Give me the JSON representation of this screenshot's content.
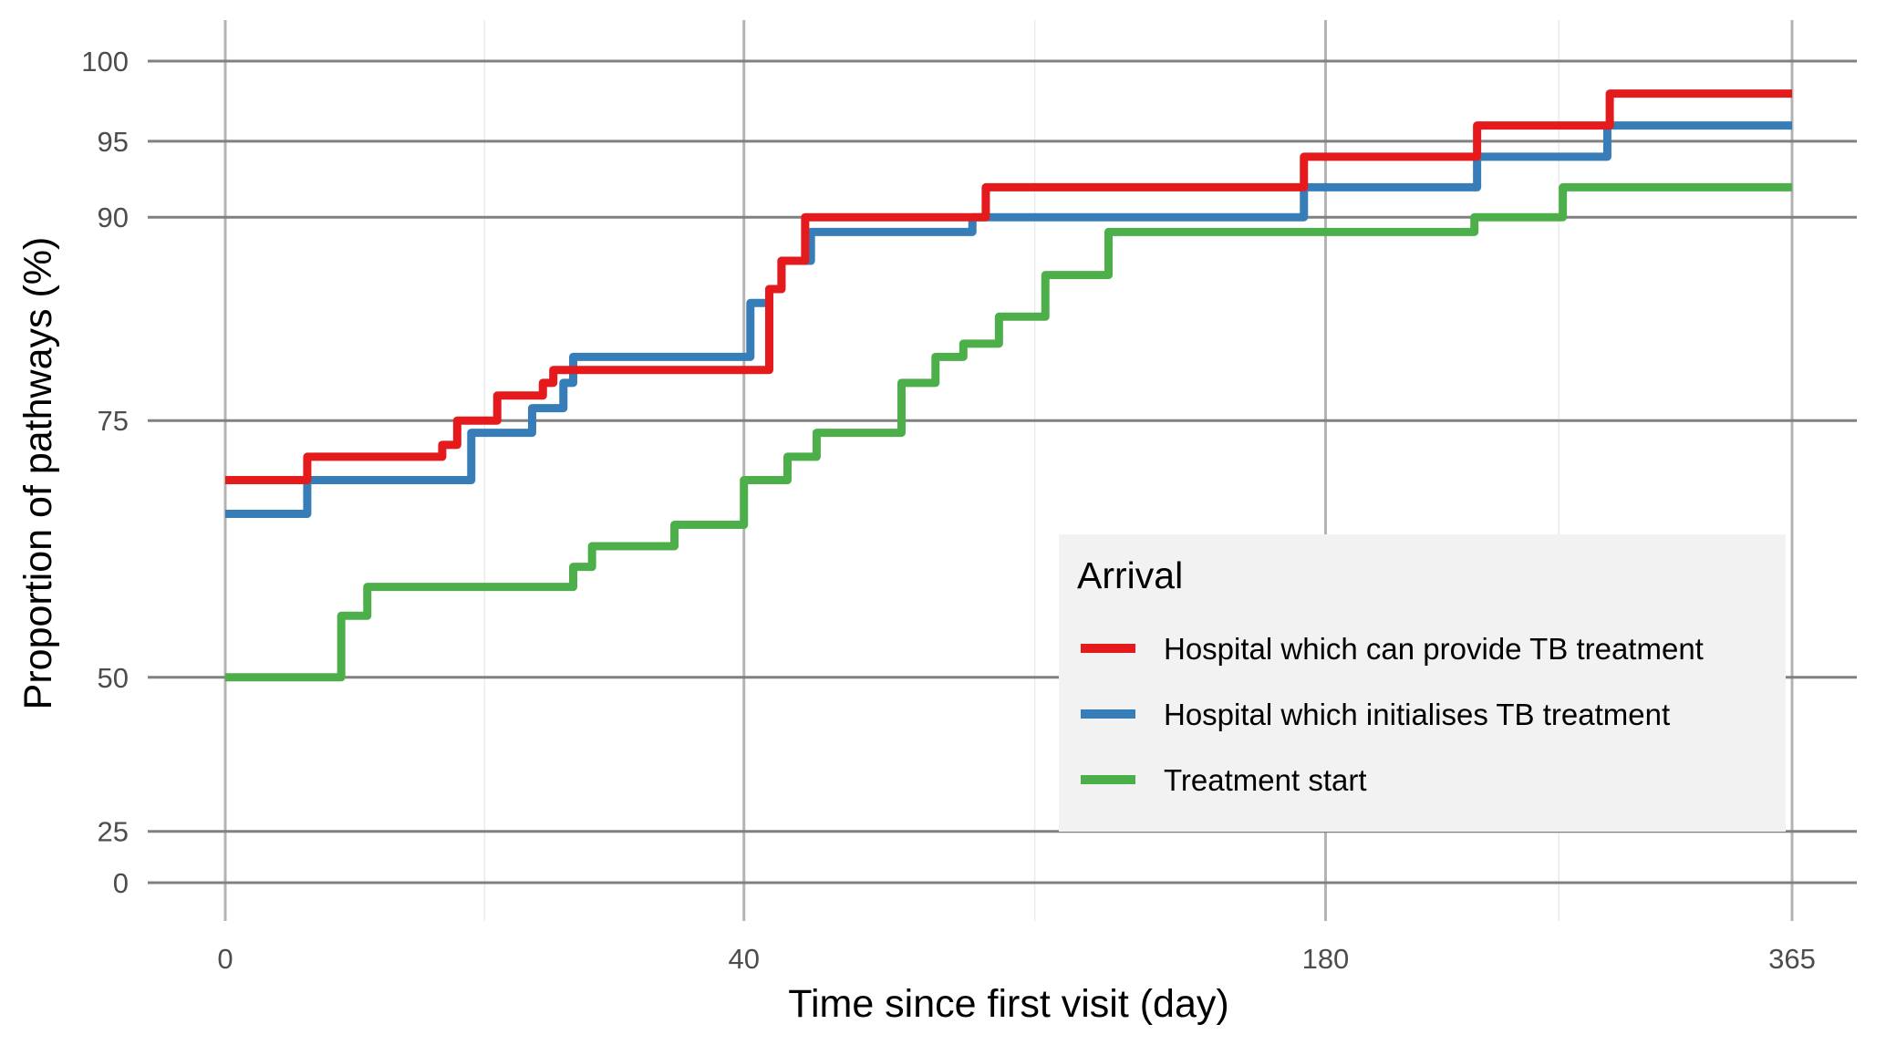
{
  "chart_data": {
    "type": "line",
    "step": true,
    "xlabel": "Time since first visit (day)",
    "ylabel": "Proportion of pathways (%)",
    "xlim": [
      -18,
      377
    ],
    "ylim": [
      -5,
      103
    ],
    "x_scale": "sqrt",
    "y_scale": "squared",
    "x_ticks": [
      0,
      40,
      180,
      365
    ],
    "y_ticks": [
      0,
      25,
      50,
      75,
      90,
      95,
      100
    ],
    "grid": true,
    "legend": {
      "title": "Arrival",
      "position": "bottom-right",
      "background": "#f2f2f2"
    },
    "series": [
      {
        "name": "Hospital which can provide TB treatment",
        "color": "#e41a1c",
        "points": [
          [
            0,
            70
          ],
          [
            1,
            72
          ],
          [
            2,
            72
          ],
          [
            7,
            73
          ],
          [
            8,
            75
          ],
          [
            9,
            75
          ],
          [
            11,
            77
          ],
          [
            12,
            77
          ],
          [
            15,
            78
          ],
          [
            16,
            79
          ],
          [
            40,
            79
          ],
          [
            44,
            85
          ],
          [
            46,
            87
          ],
          [
            47,
            87
          ],
          [
            50,
            90
          ],
          [
            80,
            90
          ],
          [
            86,
            92
          ],
          [
            170,
            92
          ],
          [
            173,
            94
          ],
          [
            230,
            94
          ],
          [
            233,
            96
          ],
          [
            282,
            96
          ],
          [
            285,
            98
          ],
          [
            365,
            98
          ]
        ]
      },
      {
        "name": "Hospital which initialises TB treatment",
        "color": "#377eb8",
        "points": [
          [
            0,
            67
          ],
          [
            1,
            70
          ],
          [
            8,
            70
          ],
          [
            9,
            74
          ],
          [
            12,
            74
          ],
          [
            14,
            76
          ],
          [
            16,
            76
          ],
          [
            17,
            78
          ],
          [
            18,
            80
          ],
          [
            39,
            80
          ],
          [
            41,
            84
          ],
          [
            44,
            85
          ],
          [
            46,
            87
          ],
          [
            51,
            89
          ],
          [
            81,
            89
          ],
          [
            83,
            90
          ],
          [
            170,
            90
          ],
          [
            173,
            92
          ],
          [
            230,
            92
          ],
          [
            233,
            94
          ],
          [
            282,
            94
          ],
          [
            284,
            96
          ],
          [
            365,
            96
          ]
        ]
      },
      {
        "name": "Treatment start",
        "color": "#4daf4a",
        "points": [
          [
            0,
            50
          ],
          [
            2,
            57
          ],
          [
            3,
            60
          ],
          [
            16,
            60
          ],
          [
            18,
            62
          ],
          [
            20,
            64
          ],
          [
            23,
            64
          ],
          [
            30,
            66
          ],
          [
            40,
            70
          ],
          [
            47,
            72
          ],
          [
            52,
            74
          ],
          [
            65,
            74
          ],
          [
            68,
            78
          ],
          [
            75,
            80
          ],
          [
            81,
            81
          ],
          [
            89,
            83
          ],
          [
            96,
            83
          ],
          [
            100,
            86
          ],
          [
            112,
            86
          ],
          [
            116,
            89
          ],
          [
            170,
            89
          ],
          [
            220,
            89
          ],
          [
            232,
            90
          ],
          [
            262,
            90
          ],
          [
            266,
            92
          ],
          [
            365,
            92
          ]
        ]
      }
    ]
  }
}
